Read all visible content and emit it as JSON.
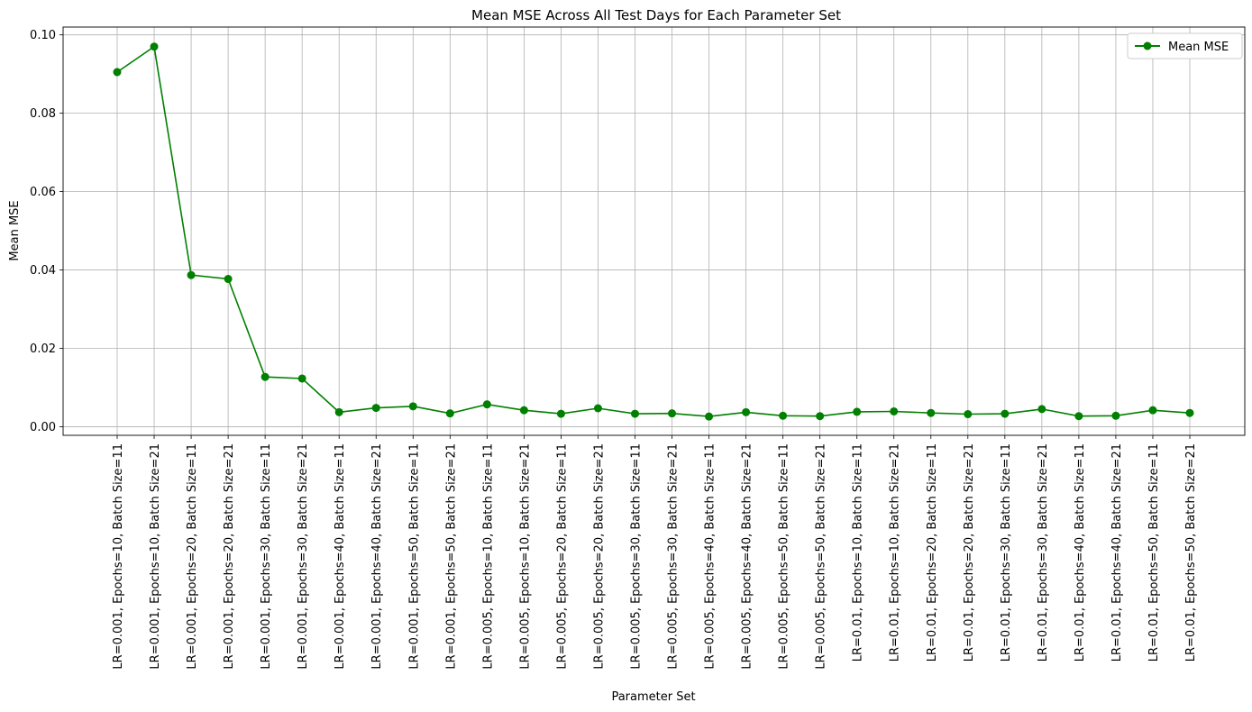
{
  "chart_data": {
    "type": "line",
    "title": "Mean MSE Across All Test Days for Each Parameter Set",
    "xlabel": "Parameter Set",
    "ylabel": "Mean MSE",
    "ylim": [
      -0.0022,
      0.102
    ],
    "yticks": [
      0.0,
      0.02,
      0.04,
      0.06,
      0.08,
      0.1
    ],
    "ytick_labels": [
      "0.00",
      "0.02",
      "0.04",
      "0.06",
      "0.08",
      "0.10"
    ],
    "grid": true,
    "legend_position": "upper right",
    "line_color": "#008000",
    "categories": [
      "LR=0.001, Epochs=10, Batch Size=11",
      "LR=0.001, Epochs=10, Batch Size=21",
      "LR=0.001, Epochs=20, Batch Size=11",
      "LR=0.001, Epochs=20, Batch Size=21",
      "LR=0.001, Epochs=30, Batch Size=11",
      "LR=0.001, Epochs=30, Batch Size=21",
      "LR=0.001, Epochs=40, Batch Size=11",
      "LR=0.001, Epochs=40, Batch Size=21",
      "LR=0.001, Epochs=50, Batch Size=11",
      "LR=0.001, Epochs=50, Batch Size=21",
      "LR=0.005, Epochs=10, Batch Size=11",
      "LR=0.005, Epochs=10, Batch Size=21",
      "LR=0.005, Epochs=20, Batch Size=11",
      "LR=0.005, Epochs=20, Batch Size=21",
      "LR=0.005, Epochs=30, Batch Size=11",
      "LR=0.005, Epochs=30, Batch Size=21",
      "LR=0.005, Epochs=40, Batch Size=11",
      "LR=0.005, Epochs=40, Batch Size=21",
      "LR=0.005, Epochs=50, Batch Size=11",
      "LR=0.005, Epochs=50, Batch Size=21",
      "LR=0.01, Epochs=10, Batch Size=11",
      "LR=0.01, Epochs=10, Batch Size=21",
      "LR=0.01, Epochs=20, Batch Size=11",
      "LR=0.01, Epochs=20, Batch Size=21",
      "LR=0.01, Epochs=30, Batch Size=11",
      "LR=0.01, Epochs=30, Batch Size=21",
      "LR=0.01, Epochs=40, Batch Size=11",
      "LR=0.01, Epochs=40, Batch Size=21",
      "LR=0.01, Epochs=50, Batch Size=11",
      "LR=0.01, Epochs=50, Batch Size=21"
    ],
    "series": [
      {
        "name": "Mean MSE",
        "values": [
          0.0905,
          0.097,
          0.0387,
          0.0377,
          0.0127,
          0.0123,
          0.0037,
          0.0048,
          0.0052,
          0.0034,
          0.0057,
          0.0042,
          0.0033,
          0.0047,
          0.0033,
          0.0034,
          0.0026,
          0.0037,
          0.0028,
          0.0027,
          0.0038,
          0.0039,
          0.0035,
          0.0032,
          0.0033,
          0.0045,
          0.0027,
          0.0028,
          0.0042,
          0.0035
        ]
      }
    ]
  }
}
